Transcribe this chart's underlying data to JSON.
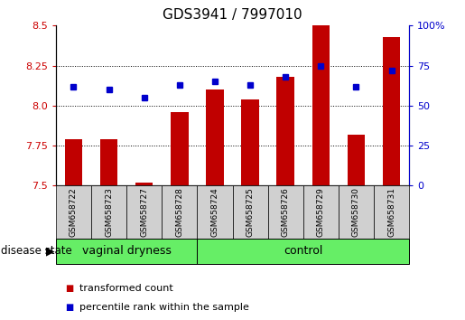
{
  "title": "GDS3941 / 7997010",
  "samples": [
    "GSM658722",
    "GSM658723",
    "GSM658727",
    "GSM658728",
    "GSM658724",
    "GSM658725",
    "GSM658726",
    "GSM658729",
    "GSM658730",
    "GSM658731"
  ],
  "red_values": [
    7.79,
    7.79,
    7.52,
    7.96,
    8.1,
    8.04,
    8.18,
    8.5,
    7.82,
    8.43
  ],
  "blue_values": [
    62,
    60,
    55,
    63,
    65,
    63,
    68,
    75,
    62,
    72
  ],
  "ylim_left": [
    7.5,
    8.5
  ],
  "ylim_right": [
    0,
    100
  ],
  "yticks_left": [
    7.5,
    7.75,
    8.0,
    8.25,
    8.5
  ],
  "yticks_right": [
    0,
    25,
    50,
    75,
    100
  ],
  "ytick_labels_right": [
    "0",
    "25",
    "50",
    "75",
    "100%"
  ],
  "hlines": [
    7.75,
    8.0,
    8.25
  ],
  "bar_color": "#c00000",
  "dot_color": "#0000cc",
  "group1": {
    "label": "vaginal dryness",
    "samples": 4
  },
  "group2": {
    "label": "control",
    "samples": 6
  },
  "group_color": "#66ee66",
  "xlabel_left": "disease state",
  "legend_items": [
    "transformed count",
    "percentile rank within the sample"
  ],
  "legend_colors": [
    "#c00000",
    "#0000cc"
  ],
  "title_fontsize": 11,
  "tick_label_color_left": "#cc0000",
  "tick_label_color_right": "#0000cc",
  "bar_width": 0.5,
  "sample_bg_color": "#d0d0d0"
}
